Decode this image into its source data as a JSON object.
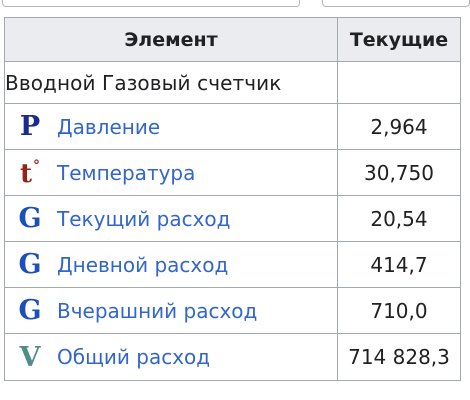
{
  "table": {
    "headers": {
      "element": "Элемент",
      "current": "Текущие"
    },
    "section_title": "Вводной Газовый счетчик",
    "rows": [
      {
        "icon": "pressure-p-icon",
        "icon_glyph": "P",
        "label": "Давление",
        "value": "2,964"
      },
      {
        "icon": "temperature-t-icon",
        "icon_glyph": "t",
        "icon_sup": "°",
        "label": "Температура",
        "value": "30,750"
      },
      {
        "icon": "flow-g-icon",
        "icon_glyph": "G",
        "label": "Текущий расход",
        "value": "20,54"
      },
      {
        "icon": "flow-g-icon",
        "icon_glyph": "G",
        "label": "Дневной расход",
        "value": "414,7"
      },
      {
        "icon": "flow-g-icon",
        "icon_glyph": "G",
        "label": "Вчерашний расход",
        "value": "710,0"
      },
      {
        "icon": "volume-v-icon",
        "icon_glyph": "V",
        "label": "Общий расход",
        "value": "714 828,3"
      }
    ]
  },
  "colors": {
    "link": "#3366cc",
    "header_bg": "#eaecf0",
    "border": "#a2a9b1",
    "icon_p": "#1b2a8c",
    "icon_t": "#8f2619",
    "icon_g": "#1d4fb8",
    "icon_v": "#4f8d8a"
  }
}
